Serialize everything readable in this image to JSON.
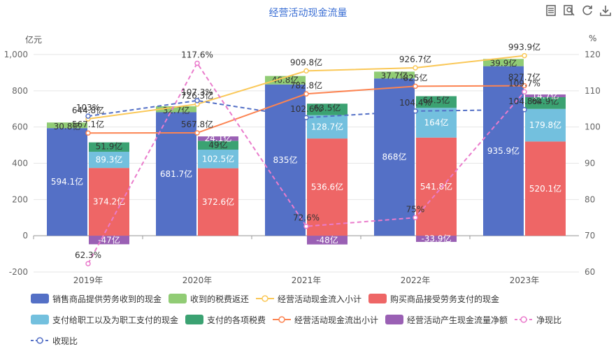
{
  "chart_data": {
    "type": "bar",
    "title": "经营活动现金流量",
    "left_unit": "亿元",
    "right_unit": "%",
    "categories": [
      "2019年",
      "2020年",
      "2021年",
      "2022年",
      "2023年"
    ],
    "left_axis": {
      "ticks": [
        -200,
        0,
        200,
        400,
        600,
        800,
        1000
      ],
      "tick_labels": [
        "-200",
        "0",
        "200",
        "400",
        "600",
        "800",
        "1,000"
      ]
    },
    "right_axis": {
      "ticks": [
        60,
        70,
        80,
        90,
        100,
        110,
        120
      ],
      "tick_labels": [
        "60",
        "70",
        "80",
        "90",
        "100",
        "110",
        "120"
      ]
    },
    "inflow_stack": [
      {
        "name": "销售商品提供劳务收到的现金",
        "color": "#5470c6",
        "values": [
          594.1,
          681.7,
          835,
          868,
          935.9
        ],
        "labels": [
          "594.1亿",
          "681.7亿",
          "835亿",
          "868亿",
          "935.9亿"
        ]
      },
      {
        "name": "收到的税费返还",
        "color": "#91cc75",
        "values": [
          30.8,
          32.7,
          46.8,
          37.7,
          39.9
        ],
        "labels": [
          "30.8亿",
          "32.7亿",
          "46.8亿",
          "37.7亿",
          "39.9亿"
        ]
      }
    ],
    "outflow_stack": [
      {
        "name": "购买商品接受劳务支付的现金",
        "color": "#ee6666",
        "values": [
          374.2,
          372.6,
          536.6,
          541.8,
          520.1
        ],
        "labels": [
          "374.2亿",
          "372.6亿",
          "536.6亿",
          "541.8亿",
          "520.1亿"
        ]
      },
      {
        "name": "支付给职工以及为职工支付的现金",
        "color": "#73c0de",
        "values": [
          89.3,
          102.5,
          128.7,
          164,
          179.8
        ],
        "labels": [
          "89.3亿",
          "102.5亿",
          "128.7亿",
          "164亿",
          "179.8亿"
        ]
      },
      {
        "name": "支付的各项税费",
        "color": "#3ba272",
        "values": [
          51.9,
          49,
          63.5,
          64.5,
          64.9
        ],
        "labels": [
          "51.9亿",
          "49亿",
          "63.5亿",
          "64.5亿",
          "64.9亿"
        ]
      }
    ],
    "net_bar": {
      "name": "经营活动产生现金流量净额",
      "color": "#9a60b4",
      "values": [
        -47,
        24.1,
        -48,
        -33.9,
        14.7
      ],
      "labels": [
        "-47亿",
        "24.1亿",
        "-48亿",
        "-33.9亿",
        "14.7亿"
      ]
    },
    "lines": [
      {
        "name": "经营活动现金流入小计",
        "color": "#fac858",
        "axis": "left",
        "dashed": false,
        "values": [
          644.8,
          726.3,
          909.8,
          926.7,
          993.9
        ],
        "labels": [
          "644.8亿",
          "726.3亿",
          "909.8亿",
          "926.7亿",
          "993.9亿"
        ]
      },
      {
        "name": "经营活动现金流出小计",
        "color": "#fc8452",
        "axis": "left",
        "dashed": false,
        "values": [
          567.1,
          567.8,
          782.8,
          825,
          827.7
        ],
        "labels": [
          "567.1亿",
          "567.8亿",
          "782.8亿",
          "825亿",
          "827.7亿"
        ]
      },
      {
        "name": "净现比",
        "color": "#ea7ccc",
        "axis": "right",
        "dashed": true,
        "values": [
          62.3,
          117.6,
          72.6,
          75,
          109.7
        ],
        "labels": [
          "62.3%",
          "117.6%",
          "72.6%",
          "75%",
          "109.7%"
        ]
      },
      {
        "name": "收现比",
        "color": "#5470c6",
        "axis": "right",
        "dashed": true,
        "values": [
          103,
          107.3,
          102.6,
          104.4,
          104.8
        ],
        "labels": [
          "103%",
          "107.3%",
          "102.6%",
          "104.4%",
          "104.8%"
        ]
      }
    ],
    "legend_order": [
      "销售商品提供劳务收到的现金",
      "收到的税费返还",
      "经营活动现金流入小计",
      "购买商品接受劳务支付的现金",
      "支付给职工以及为职工支付的现金",
      "支付的各项税费",
      "经营活动现金流出小计",
      "经营活动产生现金流量净额",
      "净现比",
      "收现比"
    ],
    "legend_placement": "bottom",
    "grid": true
  },
  "toolbox": {
    "icons": [
      "data-view-icon",
      "zoom-icon",
      "restore-icon",
      "download-icon"
    ]
  }
}
